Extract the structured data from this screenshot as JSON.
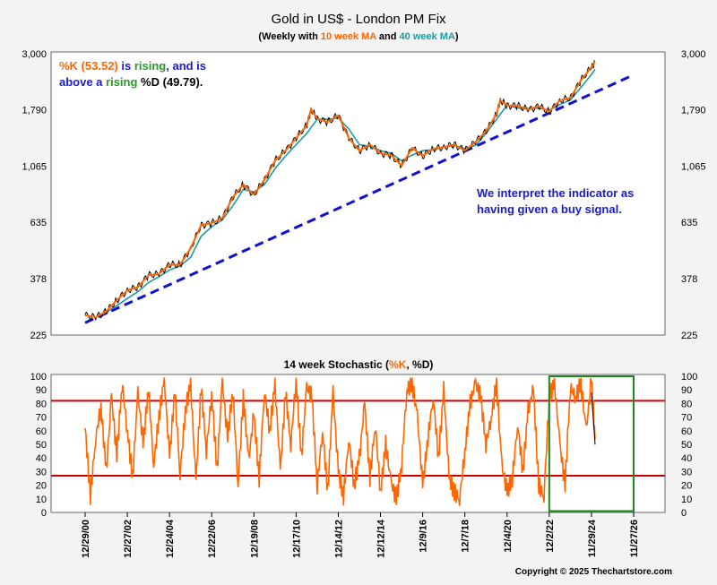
{
  "title": "Gold in US$ - London PM Fix",
  "subtitle": {
    "prefix": "(Weekly with ",
    "ma10": "10 week MA",
    "mid": " and ",
    "ma40": "40 week MA",
    "suffix": ")"
  },
  "annotation_top": {
    "line1_k": "%K (53.52)",
    "line1_is": " is ",
    "line1_rising": "rising",
    "line1_rest": ", and is",
    "line2_above": "above a ",
    "line2_rising": "rising",
    "line2_d": " %D (49.79)."
  },
  "annotation_right": {
    "line1": "We interpret the indicator as",
    "line2": "having given a buy signal."
  },
  "stoch_title": {
    "prefix": "14 week Stochastic (",
    "k": "%K",
    "sep": ", ",
    "d": "%D",
    "suffix": ")"
  },
  "copyright": "Copyright © 2025 Thechartstore.com",
  "colors": {
    "background": "#f3f3f3",
    "panel": "#ffffff",
    "price": "#000000",
    "ma10": "#ff6600",
    "ma40": "#1e9aa0",
    "trendline": "#1010d0",
    "stoch_k": "#ff6600",
    "stoch_bands": "#cc0000",
    "highlight_box": "#1a8a1a",
    "annot_k": "#ff6600",
    "annot_blue": "#1a1ad0",
    "annot_green": "#2a9a2a"
  },
  "chart_data": [
    {
      "type": "line",
      "y_scale": "log",
      "ylim": [
        225,
        3000
      ],
      "y_ticks": [
        225,
        378,
        635,
        1065,
        1790,
        3000
      ],
      "y_tick_labels": [
        "225",
        "378",
        "635",
        "1,065",
        "1,790",
        "3,000"
      ],
      "xlim": [
        "2000-12-29",
        "2026-11-27"
      ],
      "series": [
        {
          "name": "10 week MA",
          "x": [
            "2000-12-29",
            "2001-06-29",
            "2001-12-28",
            "2002-06-28",
            "2002-12-27",
            "2003-06-27",
            "2003-12-26",
            "2004-06-25",
            "2004-12-24",
            "2005-06-24",
            "2005-12-23",
            "2006-06-23",
            "2006-12-22",
            "2007-06-22",
            "2007-12-21",
            "2008-06-20",
            "2008-12-19",
            "2009-06-19",
            "2009-12-18",
            "2010-06-18",
            "2010-12-17",
            "2011-06-17",
            "2011-09-02",
            "2011-12-16",
            "2012-06-15",
            "2012-12-14",
            "2013-06-14",
            "2013-12-13",
            "2014-06-13",
            "2014-12-12",
            "2015-06-12",
            "2015-12-11",
            "2016-06-10",
            "2016-12-09",
            "2017-06-09",
            "2017-12-08",
            "2018-06-08",
            "2018-12-07",
            "2019-06-07",
            "2019-12-06",
            "2020-06-05",
            "2020-08-07",
            "2020-12-04",
            "2021-06-04",
            "2021-12-03",
            "2022-06-03",
            "2022-12-02",
            "2023-06-02",
            "2023-12-01",
            "2024-05-31",
            "2024-11-29",
            "2025-01-31"
          ],
          "values": [
            270,
            265,
            280,
            310,
            340,
            350,
            390,
            395,
            430,
            430,
            500,
            620,
            630,
            660,
            800,
            900,
            820,
            940,
            1120,
            1230,
            1380,
            1550,
            1800,
            1650,
            1600,
            1700,
            1380,
            1230,
            1300,
            1200,
            1180,
            1070,
            1260,
            1170,
            1250,
            1270,
            1300,
            1230,
            1330,
            1470,
            1720,
            1960,
            1860,
            1860,
            1790,
            1850,
            1760,
            1950,
            2000,
            2350,
            2650,
            2780
          ]
        },
        {
          "name": "40 week MA",
          "x": [
            "2001-09-28",
            "2002-06-28",
            "2002-12-27",
            "2003-06-27",
            "2003-12-26",
            "2004-06-25",
            "2004-12-24",
            "2005-06-24",
            "2005-12-23",
            "2006-06-23",
            "2006-12-22",
            "2007-06-22",
            "2007-12-21",
            "2008-06-20",
            "2008-12-19",
            "2009-06-19",
            "2009-12-18",
            "2010-06-18",
            "2010-12-17",
            "2011-06-17",
            "2011-12-16",
            "2012-06-15",
            "2012-12-14",
            "2013-06-14",
            "2013-12-13",
            "2014-06-13",
            "2014-12-12",
            "2015-06-12",
            "2015-12-11",
            "2016-06-10",
            "2016-12-09",
            "2017-06-09",
            "2017-12-08",
            "2018-06-08",
            "2018-12-07",
            "2019-06-07",
            "2019-12-06",
            "2020-06-05",
            "2020-12-04",
            "2021-06-04",
            "2021-12-03",
            "2022-06-03",
            "2022-12-02",
            "2023-06-02",
            "2023-12-01",
            "2024-05-31",
            "2024-11-29",
            "2025-01-31"
          ],
          "values": [
            270,
            295,
            315,
            335,
            365,
            385,
            410,
            425,
            460,
            560,
            610,
            650,
            740,
            860,
            840,
            900,
            1040,
            1170,
            1300,
            1440,
            1640,
            1640,
            1660,
            1500,
            1300,
            1280,
            1230,
            1200,
            1120,
            1180,
            1230,
            1240,
            1270,
            1290,
            1250,
            1290,
            1440,
            1640,
            1870,
            1820,
            1810,
            1820,
            1780,
            1880,
            1960,
            2200,
            2480,
            2600
          ]
        }
      ],
      "trendline": {
        "name": "trendline",
        "x": [
          "2000-12-29",
          "2026-11-27"
        ],
        "values": [
          252,
          2470
        ]
      }
    },
    {
      "type": "line",
      "title": "14 week Stochastic (%K, %D)",
      "ylim": [
        0,
        100
      ],
      "y_ticks": [
        0,
        10,
        20,
        30,
        40,
        50,
        60,
        70,
        80,
        90,
        100
      ],
      "bands": [
        82,
        27
      ],
      "x_tick_labels": [
        "12/29/00",
        "12/27/02",
        "12/24/04",
        "12/22/06",
        "12/19/08",
        "12/17/10",
        "12/14/12",
        "12/12/14",
        "12/9/16",
        "12/7/18",
        "12/4/20",
        "12/2/22",
        "11/29/24",
        "11/27/26"
      ],
      "x_ticks": [
        "2000-12-29",
        "2002-12-27",
        "2004-12-24",
        "2006-12-22",
        "2008-12-19",
        "2010-12-17",
        "2012-12-14",
        "2014-12-12",
        "2016-12-09",
        "2018-12-07",
        "2020-12-04",
        "2022-12-02",
        "2024-11-29",
        "2026-11-27"
      ],
      "highlight": {
        "x": [
          "2022-12-02",
          "2026-11-27"
        ],
        "y": [
          1,
          100
        ]
      },
      "series": [
        {
          "name": "%K",
          "x": [
            "2000-12-29",
            "2001-03-30",
            "2001-06-29",
            "2001-09-28",
            "2001-12-28",
            "2002-03-29",
            "2002-06-28",
            "2002-09-27",
            "2002-12-27",
            "2003-03-28",
            "2003-06-27",
            "2003-09-26",
            "2003-12-26",
            "2004-03-26",
            "2004-06-25",
            "2004-09-24",
            "2004-12-24",
            "2005-03-25",
            "2005-06-24",
            "2005-09-23",
            "2005-12-23",
            "2006-03-24",
            "2006-06-23",
            "2006-09-22",
            "2006-12-22",
            "2007-03-23",
            "2007-06-22",
            "2007-09-21",
            "2007-12-21",
            "2008-03-21",
            "2008-06-20",
            "2008-09-19",
            "2008-12-19",
            "2009-03-20",
            "2009-06-19",
            "2009-09-18",
            "2009-12-18",
            "2010-03-19",
            "2010-06-18",
            "2010-09-17",
            "2010-12-17",
            "2011-03-18",
            "2011-06-17",
            "2011-09-16",
            "2011-12-16",
            "2012-03-16",
            "2012-06-15",
            "2012-09-14",
            "2012-12-14",
            "2013-03-15",
            "2013-06-14",
            "2013-09-13",
            "2013-12-13",
            "2014-03-14",
            "2014-06-13",
            "2014-09-12",
            "2014-12-12",
            "2015-03-13",
            "2015-06-12",
            "2015-09-11",
            "2015-12-11",
            "2016-03-11",
            "2016-06-10",
            "2016-09-09",
            "2016-12-09",
            "2017-03-10",
            "2017-06-09",
            "2017-09-08",
            "2017-12-08",
            "2018-03-09",
            "2018-06-08",
            "2018-09-07",
            "2018-12-07",
            "2019-03-08",
            "2019-06-07",
            "2019-09-06",
            "2019-12-06",
            "2020-03-06",
            "2020-06-05",
            "2020-09-04",
            "2020-12-04",
            "2021-03-05",
            "2021-06-04",
            "2021-09-03",
            "2021-12-03",
            "2022-03-04",
            "2022-06-03",
            "2022-09-02",
            "2022-12-02",
            "2023-03-03",
            "2023-06-02",
            "2023-09-01",
            "2023-12-01",
            "2024-03-01",
            "2024-05-31",
            "2024-08-30",
            "2024-11-29",
            "2025-01-31"
          ],
          "values": [
            62,
            12,
            55,
            78,
            30,
            85,
            42,
            95,
            60,
            25,
            88,
            50,
            92,
            35,
            70,
            98,
            40,
            90,
            28,
            75,
            95,
            22,
            92,
            45,
            88,
            30,
            96,
            55,
            90,
            20,
            85,
            38,
            72,
            25,
            90,
            60,
            95,
            30,
            88,
            50,
            98,
            40,
            92,
            85,
            20,
            60,
            15,
            88,
            30,
            12,
            55,
            20,
            40,
            80,
            25,
            65,
            15,
            50,
            22,
            10,
            35,
            90,
            95,
            70,
            20,
            55,
            85,
            40,
            90,
            25,
            15,
            10,
            45,
            80,
            95,
            85,
            50,
            70,
            95,
            35,
            15,
            25,
            65,
            30,
            75,
            90,
            20,
            12,
            85,
            95,
            50,
            20,
            92,
            85,
            95,
            60,
            98,
            53.52
          ]
        },
        {
          "name": "%D",
          "x": [
            "2024-11-29",
            "2025-01-31"
          ],
          "values": [
            88,
            49.79
          ]
        }
      ]
    }
  ]
}
